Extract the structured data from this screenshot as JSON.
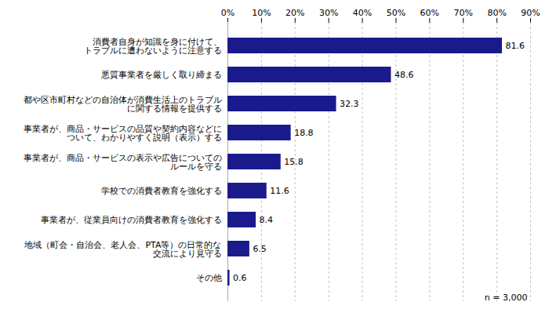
{
  "chart_data": {
    "type": "bar",
    "orientation": "horizontal",
    "categories": [
      "消費者自身が知識を身に付けて、\nトラブルに遭わないように注意する",
      "悪質事業者を厳しく取り締まる",
      "都や区市町村などの自治体が消費生活上のトラブル\nに関する情報を提供する",
      "事業者が、商品・サービスの品質や契約内容などに\nついて、わかりやすく説明（表示）する",
      "事業者が、商品・サービスの表示や広告についての\nルールを守る",
      "学校での消費者教育を強化する",
      "事業者が、従業員向けの消費者教育を強化する",
      "地域（町会・自治会、老人会、PTA等）の日常的な\n交流により見守る",
      "その他"
    ],
    "values": [
      81.6,
      48.6,
      32.3,
      18.8,
      15.8,
      11.6,
      8.4,
      6.5,
      0.6
    ],
    "color": "#1a1a8c",
    "data_labels": true,
    "xlim": [
      0,
      90
    ],
    "xticks": [
      {
        "value": 0,
        "label": "0%"
      },
      {
        "value": 10,
        "label": "10%"
      },
      {
        "value": 20,
        "label": "20%"
      },
      {
        "value": 30,
        "label": "30%"
      },
      {
        "value": 40,
        "label": "40%"
      },
      {
        "value": 50,
        "label": "50%"
      },
      {
        "value": 60,
        "label": "60%"
      },
      {
        "value": 70,
        "label": "70%"
      },
      {
        "value": 80,
        "label": "80%"
      },
      {
        "value": 90,
        "label": "90%"
      }
    ],
    "grid": true,
    "annotation": "n = 3,000"
  }
}
